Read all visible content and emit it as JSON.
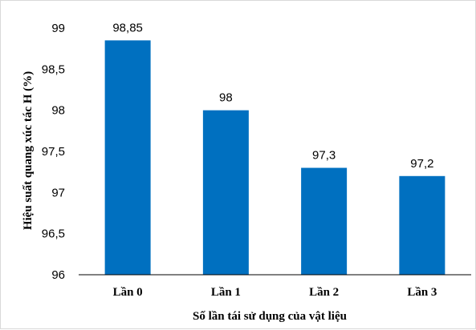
{
  "chart_data": {
    "type": "bar",
    "categories": [
      "Lần 0",
      "Lần 1",
      "Lần 2",
      "Lần 3"
    ],
    "values": [
      98.85,
      98,
      97.3,
      97.2
    ],
    "data_labels": [
      "98,85",
      "98",
      "97,3",
      "97,2"
    ],
    "title": "",
    "xlabel": "Số lần tái sử dụng của vật liệu",
    "ylabel": "Hiệu  suất quang xúc tác H (%)",
    "ylim": [
      96,
      99
    ],
    "yticks": [
      96,
      96.5,
      97,
      97.5,
      98,
      98.5,
      99
    ],
    "ytick_labels": [
      "96",
      "96,5",
      "97",
      "97,5",
      "98",
      "98,5",
      "99"
    ],
    "grid": false,
    "legend": "none",
    "bar_color": "#0070c0"
  }
}
